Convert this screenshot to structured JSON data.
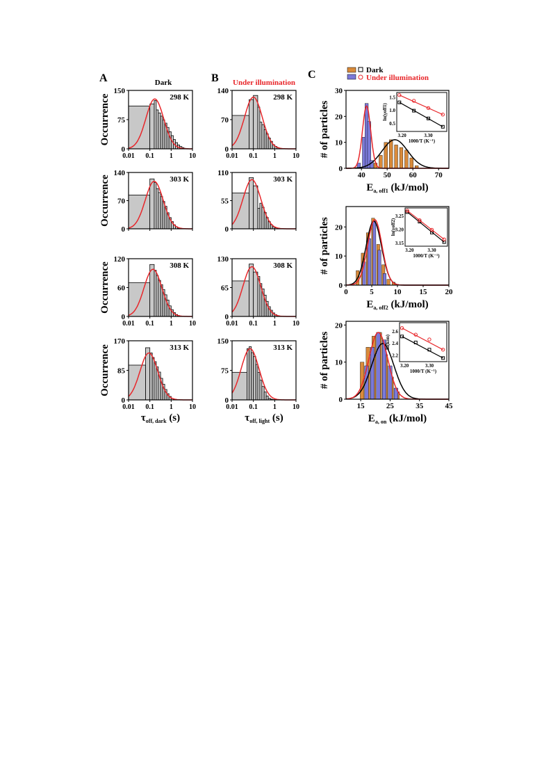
{
  "figure": {
    "panel_labels": [
      "A",
      "B",
      "C"
    ],
    "col_titles": {
      "A": "Dark",
      "B": "Under illumination"
    },
    "colors": {
      "hist_fill": "#c8c8c8",
      "fit_red": "#e8262a",
      "fit_black": "#000000",
      "orange": "#d98a3a",
      "blue": "#7b79d8",
      "dark_marker": "#000000",
      "light_marker": "#e8262a"
    }
  },
  "chart_data": [
    {
      "id": "A1",
      "type": "histogram",
      "panel": "A",
      "temp_label": "298 K",
      "xscale": "log",
      "xlim": [
        0.01,
        10
      ],
      "ylim": [
        0,
        150
      ],
      "yticks": [
        0,
        75,
        150
      ],
      "ylabel": "Occurrence",
      "xlabel": "",
      "xticks": [
        "0.01",
        "0.1",
        "1",
        "10"
      ],
      "bins_x": [
        0.01,
        0.1,
        0.16,
        0.2,
        0.25,
        0.32,
        0.4,
        0.5,
        0.63,
        0.79,
        1.0,
        1.26,
        1.58,
        2.0,
        2.5,
        3.2,
        4.0
      ],
      "bins_y": [
        110,
        115,
        124,
        100,
        92,
        84,
        74,
        66,
        55,
        44,
        34,
        24,
        16,
        10,
        6,
        3
      ],
      "fit_peak_x": 0.17,
      "fit_peak_y": 128
    },
    {
      "id": "A2",
      "type": "histogram",
      "panel": "A",
      "temp_label": "303 K",
      "xscale": "log",
      "xlim": [
        0.01,
        10
      ],
      "ylim": [
        0,
        140
      ],
      "yticks": [
        0,
        70,
        140
      ],
      "ylabel": "Occurrence",
      "xlabel": "",
      "xticks": [
        "",
        "",
        "",
        ""
      ],
      "bins_x": [
        0.01,
        0.1,
        0.16,
        0.2,
        0.25,
        0.32,
        0.4,
        0.5,
        0.63,
        0.79,
        1.0,
        1.26,
        1.58,
        2.0
      ],
      "bins_y": [
        84,
        124,
        115,
        100,
        90,
        80,
        68,
        56,
        40,
        28,
        18,
        10,
        5
      ],
      "fit_peak_x": 0.16,
      "fit_peak_y": 118
    },
    {
      "id": "A3",
      "type": "histogram",
      "panel": "A",
      "temp_label": "308 K",
      "xscale": "log",
      "xlim": [
        0.01,
        10
      ],
      "ylim": [
        0,
        120
      ],
      "yticks": [
        0,
        60,
        120
      ],
      "ylabel": "Occurrence",
      "xlabel": "",
      "xticks": [
        "0.01",
        "0.1",
        "1",
        "10"
      ],
      "bins_x": [
        0.01,
        0.1,
        0.16,
        0.2,
        0.25,
        0.32,
        0.4,
        0.5,
        0.63,
        0.79,
        1.0,
        1.26,
        1.58,
        2.0
      ],
      "bins_y": [
        70,
        108,
        96,
        85,
        75,
        66,
        56,
        45,
        34,
        22,
        14,
        8,
        4
      ],
      "fit_peak_x": 0.14,
      "fit_peak_y": 98
    },
    {
      "id": "A4",
      "type": "histogram",
      "panel": "A",
      "temp_label": "313 K",
      "xscale": "log",
      "xlim": [
        0.01,
        10
      ],
      "ylim": [
        0,
        170
      ],
      "yticks": [
        0,
        85,
        170
      ],
      "ylabel": "Occurrence",
      "xlabel": "τoff, dark (s)",
      "xticks": [
        "0.01",
        "0.1",
        "1",
        "10"
      ],
      "bins_x": [
        0.01,
        0.063,
        0.1,
        0.13,
        0.16,
        0.2,
        0.25,
        0.32,
        0.4,
        0.5,
        0.63,
        0.79,
        1.0,
        1.26
      ],
      "bins_y": [
        100,
        150,
        135,
        122,
        110,
        95,
        80,
        62,
        45,
        30,
        18,
        10,
        4
      ],
      "fit_peak_x": 0.09,
      "fit_peak_y": 135
    },
    {
      "id": "B1",
      "type": "histogram",
      "panel": "B",
      "temp_label": "298 K",
      "xscale": "log",
      "xlim": [
        0.01,
        10
      ],
      "ylim": [
        0,
        140
      ],
      "yticks": [
        0,
        70,
        140
      ],
      "ylabel": "",
      "xlabel": "",
      "xticks": [
        "0.01",
        "0.1",
        "1",
        "10"
      ],
      "bins_x": [
        0.01,
        0.063,
        0.1,
        0.16,
        0.2,
        0.25,
        0.32,
        0.4,
        0.5,
        0.63,
        0.79,
        1.0,
        1.26,
        1.58
      ],
      "bins_y": [
        80,
        118,
        128,
        100,
        64,
        58,
        46,
        36,
        26,
        18,
        10,
        6,
        3
      ],
      "fit_peak_x": 0.1,
      "fit_peak_y": 124
    },
    {
      "id": "B2",
      "type": "histogram",
      "panel": "B",
      "temp_label": "303 K",
      "xscale": "log",
      "xlim": [
        0.01,
        10
      ],
      "ylim": [
        0,
        110
      ],
      "yticks": [
        0,
        55,
        110
      ],
      "ylabel": "",
      "xlabel": "",
      "xticks": [
        "",
        "",
        "",
        ""
      ],
      "bins_x": [
        0.01,
        0.063,
        0.1,
        0.16,
        0.2,
        0.25,
        0.32,
        0.4,
        0.5,
        0.63,
        0.79,
        1.0,
        1.26
      ],
      "bins_y": [
        70,
        100,
        84,
        40,
        50,
        42,
        32,
        22,
        14,
        8,
        4,
        2
      ],
      "fit_peak_x": 0.085,
      "fit_peak_y": 96
    },
    {
      "id": "B3",
      "type": "histogram",
      "panel": "B",
      "temp_label": "308 K",
      "xscale": "log",
      "xlim": [
        0.01,
        10
      ],
      "ylim": [
        0,
        130
      ],
      "yticks": [
        0,
        65,
        130
      ],
      "ylabel": "",
      "xlabel": "",
      "xticks": [
        "0.01",
        "0.1",
        "1",
        "10"
      ],
      "bins_x": [
        0.01,
        0.063,
        0.1,
        0.16,
        0.2,
        0.25,
        0.32,
        0.4,
        0.5,
        0.63,
        0.79,
        1.0,
        1.26
      ],
      "bins_y": [
        80,
        118,
        100,
        90,
        74,
        62,
        48,
        34,
        22,
        14,
        8,
        4
      ],
      "fit_peak_x": 0.085,
      "fit_peak_y": 112
    },
    {
      "id": "B4",
      "type": "histogram",
      "panel": "B",
      "temp_label": "313 K",
      "xscale": "log",
      "xlim": [
        0.01,
        10
      ],
      "ylim": [
        0,
        150
      ],
      "yticks": [
        0,
        75,
        150
      ],
      "ylabel": "",
      "xlabel": "τoff, light (s)",
      "xticks": [
        "0.01",
        "0.1",
        "1",
        "10"
      ],
      "bins_x": [
        0.01,
        0.05,
        0.063,
        0.08,
        0.1,
        0.13,
        0.16,
        0.2,
        0.25,
        0.32,
        0.4,
        0.5,
        0.63
      ],
      "bins_y": [
        70,
        130,
        135,
        120,
        110,
        90,
        70,
        50,
        34,
        20,
        10,
        4
      ],
      "fit_peak_x": 0.07,
      "fit_peak_y": 130
    },
    {
      "id": "C1",
      "type": "bar",
      "panel": "C",
      "xlim": [
        34,
        74
      ],
      "xticks": [
        40,
        50,
        60,
        70
      ],
      "ylim": [
        0,
        30
      ],
      "yticks": [
        0,
        10,
        20,
        30
      ],
      "ylabel": "# of particles",
      "xlabel": "Ea, off1 (kJ/mol)",
      "legend": [
        "Dark",
        "Under illumination"
      ],
      "series": [
        {
          "name": "Dark",
          "color_key": "orange",
          "x": [
            44,
            46,
            48,
            50,
            52,
            54,
            56,
            58,
            60,
            62
          ],
          "values": [
            1,
            2,
            5,
            10,
            11,
            9,
            8,
            7,
            4,
            1
          ],
          "fit": {
            "mu": 53,
            "sigma": 5,
            "amp": 11
          }
        },
        {
          "name": "Under illumination",
          "color_key": "blue",
          "x": [
            39,
            41,
            42,
            43,
            44
          ],
          "values": [
            2,
            12,
            25,
            18,
            3
          ],
          "fit": {
            "mu": 42,
            "sigma": 1.6,
            "amp": 24
          }
        }
      ],
      "inset": {
        "ylabel": "ln(γoff1)",
        "xlabel": "1000/T (K⁻¹)",
        "xlim": [
          3.18,
          3.37
        ],
        "xticks": [
          "3.20",
          "3.30"
        ],
        "ylim": [
          0.2,
          1.7
        ],
        "yticks": [
          "0.5",
          "1.0",
          "1.5"
        ],
        "dark": {
          "x": [
            3.19,
            3.245,
            3.3,
            3.355
          ],
          "y": [
            1.32,
            1.0,
            0.7,
            0.38
          ]
        },
        "light": {
          "x": [
            3.19,
            3.245,
            3.3,
            3.355
          ],
          "y": [
            1.6,
            1.38,
            1.1,
            0.85
          ]
        }
      }
    },
    {
      "id": "C2",
      "type": "bar",
      "panel": "C",
      "xlim": [
        0,
        20
      ],
      "xticks": [
        0,
        5,
        10,
        15,
        20
      ],
      "ylim": [
        0,
        27
      ],
      "yticks": [
        0,
        10,
        20
      ],
      "ylabel": "# of particles",
      "xlabel": "Ea, off2 (kJ/mol)",
      "series": [
        {
          "name": "Dark",
          "color_key": "orange",
          "x": [
            2.5,
            3.5,
            4.5,
            5.5,
            6.5,
            7.5,
            8.5,
            9.5
          ],
          "values": [
            5,
            11,
            18,
            23,
            14,
            7,
            2,
            1
          ],
          "fit": {
            "mu": 5.4,
            "sigma": 1.5,
            "amp": 22
          }
        },
        {
          "name": "Under illumination",
          "color_key": "blue",
          "x": [
            3.5,
            4.5,
            5.5,
            6.5,
            7.5
          ],
          "values": [
            8,
            16,
            22,
            12,
            4
          ],
          "fit": {
            "mu": 5.6,
            "sigma": 1.4,
            "amp": 22.5
          }
        }
      ],
      "inset": {
        "ylabel": "ln(γoff2)",
        "xlabel": "1000/T (K⁻¹)",
        "xlim": [
          3.18,
          3.37
        ],
        "xticks": [
          "3.20",
          "3.30"
        ],
        "ylim": [
          3.14,
          3.28
        ],
        "yticks": [
          "3.15",
          "3.20",
          "3.25"
        ],
        "dark": {
          "x": [
            3.19,
            3.245,
            3.3,
            3.355
          ],
          "y": [
            3.265,
            3.23,
            3.19,
            3.155
          ]
        },
        "light": {
          "x": [
            3.19,
            3.245,
            3.3,
            3.355
          ],
          "y": [
            3.27,
            3.235,
            3.2,
            3.165
          ]
        }
      }
    },
    {
      "id": "C3",
      "type": "bar",
      "panel": "C",
      "xlim": [
        10,
        45
      ],
      "xticks": [
        15,
        25,
        35,
        45
      ],
      "ylim": [
        0,
        21
      ],
      "yticks": [
        0,
        10,
        20
      ],
      "ylabel": "# of particles",
      "xlabel": "Ea, on (kJ/mol)",
      "series": [
        {
          "name": "Dark",
          "color_key": "orange",
          "x": [
            16,
            18,
            20,
            22,
            24,
            26,
            28
          ],
          "values": [
            10,
            14,
            17,
            18,
            12,
            6,
            2
          ],
          "fit": {
            "mu": 22.5,
            "sigma": 3.8,
            "amp": 15
          }
        },
        {
          "name": "Under illumination",
          "color_key": "blue",
          "x": [
            17,
            19,
            21,
            23,
            25,
            27
          ],
          "values": [
            9,
            14,
            18,
            16,
            9,
            3
          ],
          "fit": {
            "mu": 21,
            "sigma": 3.2,
            "amp": 18
          }
        }
      ],
      "inset": {
        "ylabel": "ln(kon)",
        "xlabel": "1000/T (K⁻¹)",
        "xlim": [
          3.18,
          3.37
        ],
        "xticks": [
          "3.20",
          "3.30"
        ],
        "ylim": [
          2.1,
          2.75
        ],
        "yticks": [
          "2.2",
          "2.4",
          "2.6"
        ],
        "dark": {
          "x": [
            3.19,
            3.245,
            3.3,
            3.355
          ],
          "y": [
            2.52,
            2.42,
            2.3,
            2.16
          ]
        },
        "light": {
          "x": [
            3.19,
            3.245,
            3.3,
            3.355
          ],
          "y": [
            2.66,
            2.55,
            2.47,
            2.3
          ]
        }
      }
    }
  ]
}
